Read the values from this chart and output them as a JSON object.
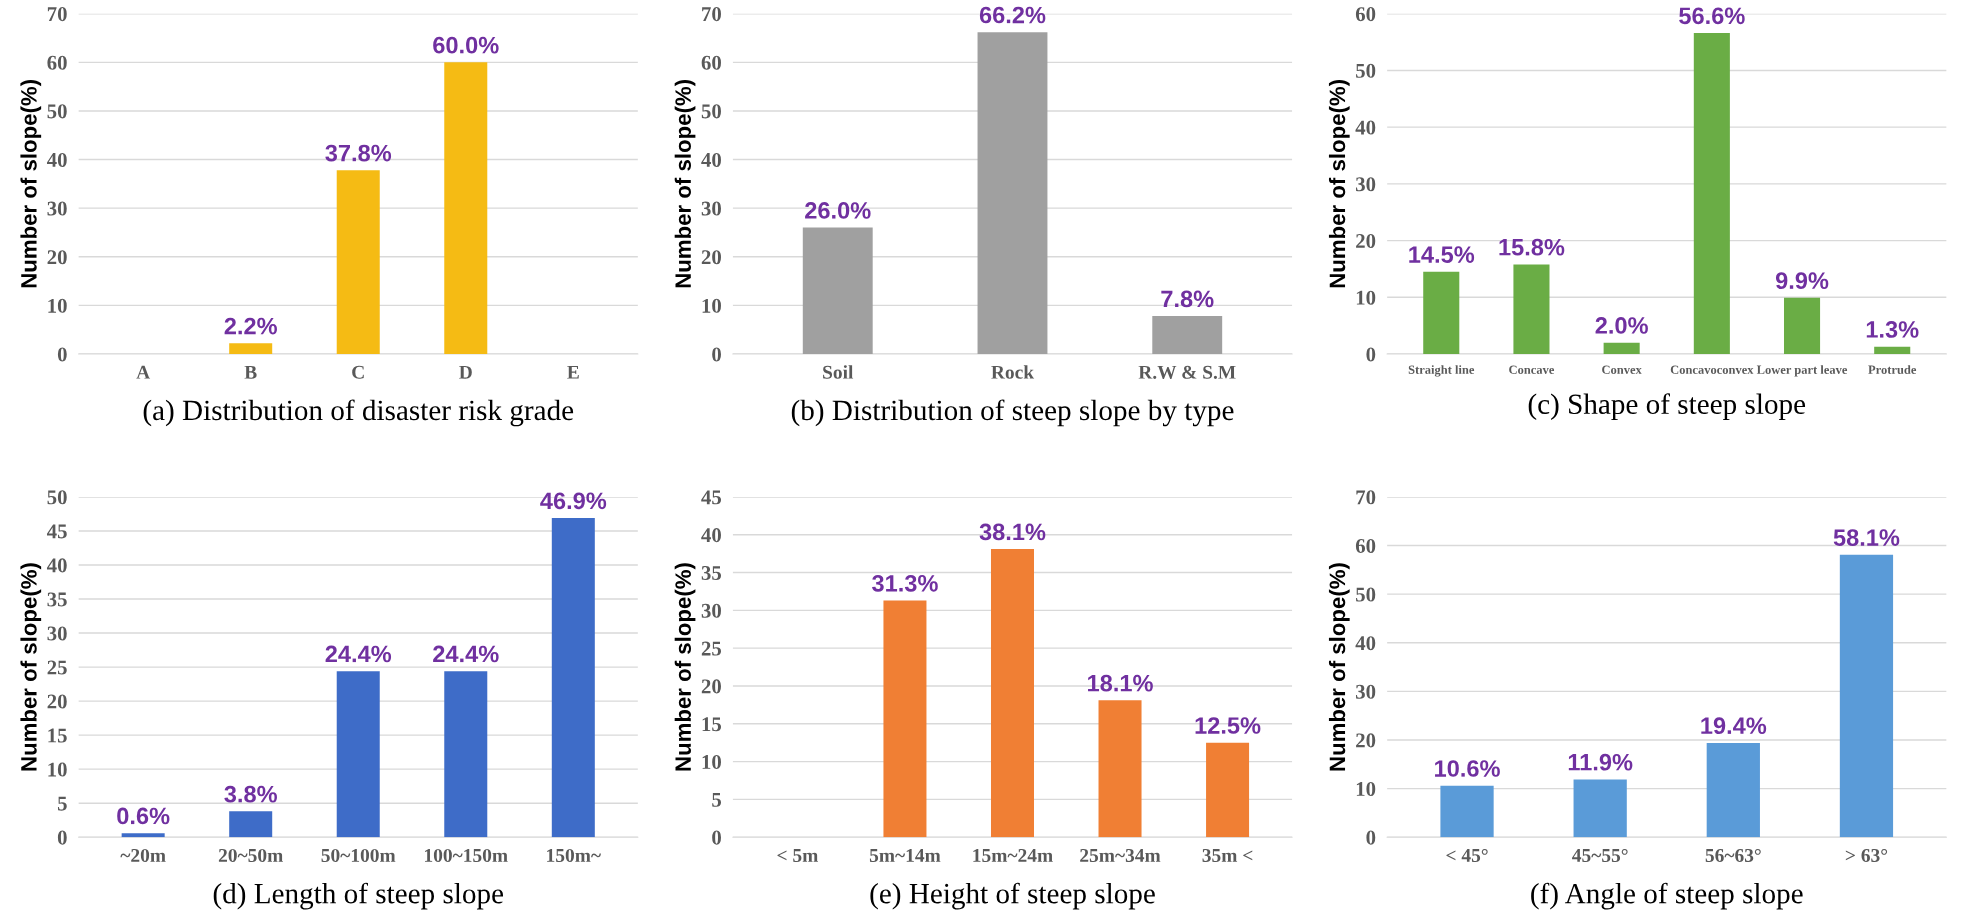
{
  "chart_data": [
    {
      "type": "bar",
      "title": "(a) Distribution of disaster risk grade",
      "ylabel": "Number of slope(%)",
      "categories": [
        "A",
        "B",
        "C",
        "D",
        "E"
      ],
      "values": [
        0,
        2.2,
        37.8,
        60.0,
        0
      ],
      "value_labels": [
        null,
        "2.2%",
        "37.8%",
        "60.0%",
        null
      ],
      "color": "#f5bb14",
      "ylim": [
        0,
        70
      ],
      "yticks": [
        0,
        10,
        20,
        30,
        40,
        50,
        60,
        70
      ],
      "grid": "y"
    },
    {
      "type": "bar",
      "title": "(b) Distribution of steep slope by type",
      "ylabel": "Number of slope(%)",
      "categories": [
        "Soil",
        "Rock",
        "R.W & S.M"
      ],
      "values": [
        26.0,
        66.2,
        7.8
      ],
      "value_labels": [
        "26.0%",
        "66.2%",
        "7.8%"
      ],
      "color": "#a0a0a0",
      "ylim": [
        0,
        70
      ],
      "yticks": [
        0,
        10,
        20,
        30,
        40,
        50,
        60,
        70
      ],
      "grid": "y"
    },
    {
      "type": "bar",
      "title": "(c) Shape of steep slope",
      "ylabel": "Number of slope(%)",
      "categories": [
        "Straight line",
        "Concave",
        "Convex",
        "Concavoconvex",
        "Lower part leave",
        "Protrude"
      ],
      "values": [
        14.5,
        15.8,
        2.0,
        56.6,
        9.9,
        1.3
      ],
      "value_labels": [
        "14.5%",
        "15.8%",
        "2.0%",
        "56.6%",
        "9.9%",
        "1.3%"
      ],
      "color": "#6aad45",
      "ylim": [
        0,
        60
      ],
      "yticks": [
        0,
        10,
        20,
        30,
        40,
        50,
        60
      ],
      "grid": "y"
    },
    {
      "type": "bar",
      "title": "(d) Length of steep slope",
      "ylabel": "Number of slope(%)",
      "categories": [
        "~20m",
        "20~50m",
        "50~100m",
        "100~150m",
        "150m~"
      ],
      "values": [
        0.6,
        3.8,
        24.4,
        24.4,
        46.9
      ],
      "value_labels": [
        "0.6%",
        "3.8%",
        "24.4%",
        "24.4%",
        "46.9%"
      ],
      "color": "#3e6cc8",
      "ylim": [
        0,
        50
      ],
      "yticks": [
        0,
        5,
        10,
        15,
        20,
        25,
        30,
        35,
        40,
        45,
        50
      ],
      "grid": "y"
    },
    {
      "type": "bar",
      "title": "(e) Height of steep slope",
      "ylabel": "Number of slope(%)",
      "categories": [
        "< 5m",
        "5m~14m",
        "15m~24m",
        "25m~34m",
        "35m <"
      ],
      "values": [
        0,
        31.3,
        38.1,
        18.1,
        12.5
      ],
      "value_labels": [
        null,
        "31.3%",
        "38.1%",
        "18.1%",
        "12.5%"
      ],
      "color": "#f07f34",
      "ylim": [
        0,
        45
      ],
      "yticks": [
        0,
        5,
        10,
        15,
        20,
        25,
        30,
        35,
        40,
        45
      ],
      "grid": "y"
    },
    {
      "type": "bar",
      "title": "(f) Angle of steep slope",
      "ylabel": "Number of slope(%)",
      "categories": [
        "< 45°",
        "45~55°",
        "56~63°",
        "> 63°"
      ],
      "values": [
        10.6,
        11.9,
        19.4,
        58.1
      ],
      "value_labels": [
        "10.6%",
        "11.9%",
        "19.4%",
        "58.1%"
      ],
      "color": "#5a9bd8",
      "ylim": [
        0,
        70
      ],
      "yticks": [
        0,
        10,
        20,
        30,
        40,
        50,
        60,
        70
      ],
      "grid": "y"
    }
  ]
}
